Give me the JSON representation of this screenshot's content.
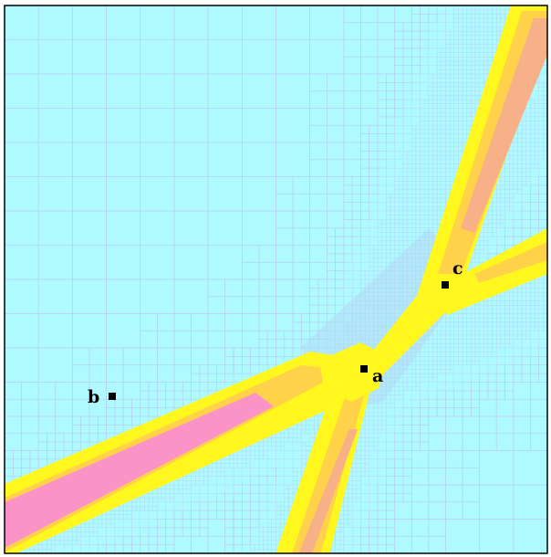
{
  "colors": {
    "background": "#aefaff",
    "grid_line": "#b7c8f4",
    "band_outer": "#fff71d",
    "band_mid": "#ffd24a",
    "band_core": "#fb93c7",
    "band_hot": "#f7b087",
    "marker": "#000000",
    "frame": "#000000"
  },
  "markers": [
    {
      "id": "a",
      "label": "a"
    },
    {
      "id": "b",
      "label": "b"
    },
    {
      "id": "c",
      "label": "c"
    }
  ]
}
